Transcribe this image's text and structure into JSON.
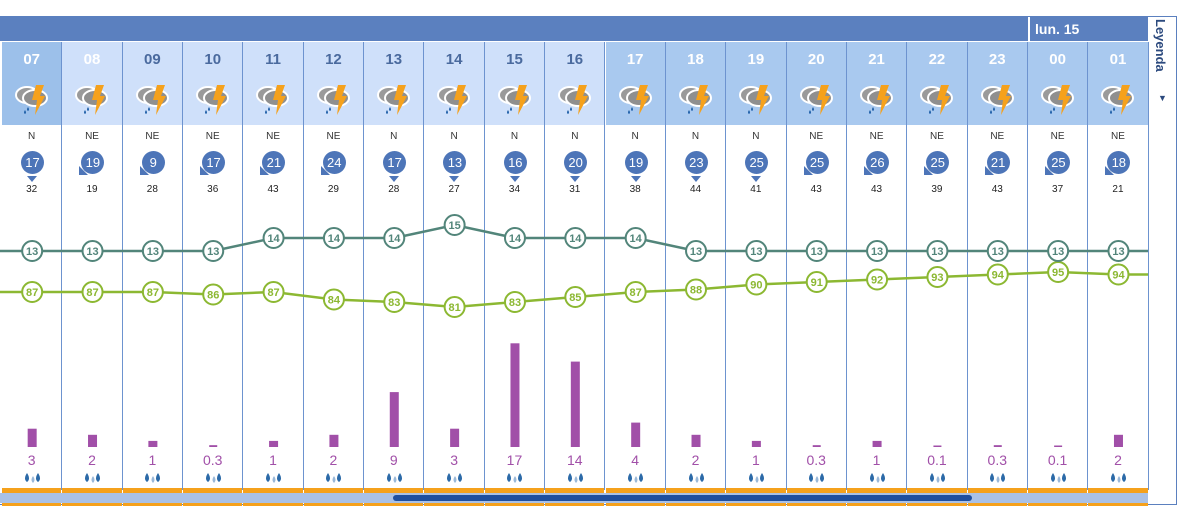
{
  "day_label": "lun. 15",
  "legend_label": "Leyenda",
  "legend_toggle_icon": "caret-down-icon",
  "colors": {
    "temperature": "#52857a",
    "humidity": "#8cb832",
    "precipitation": "#a14fa8",
    "header": "#5b80bf",
    "storm_band": "#f5a11c"
  },
  "hours": [
    {
      "hour": "07",
      "icon": "storm-rain-icon",
      "dir": "N",
      "wind": 17,
      "gust": 32,
      "temp": 13,
      "hum": 87,
      "precip": "3"
    },
    {
      "hour": "08",
      "icon": "storm-rain-icon",
      "dir": "NE",
      "wind": 19,
      "gust": 19,
      "temp": 13,
      "hum": 87,
      "precip": "2"
    },
    {
      "hour": "09",
      "icon": "storm-rain-icon",
      "dir": "NE",
      "wind": 9,
      "gust": 28,
      "temp": 13,
      "hum": 87,
      "precip": "1"
    },
    {
      "hour": "10",
      "icon": "storm-rain-icon",
      "dir": "NE",
      "wind": 17,
      "gust": 36,
      "temp": 13,
      "hum": 86,
      "precip": "0.3"
    },
    {
      "hour": "11",
      "icon": "storm-rain-icon",
      "dir": "NE",
      "wind": 21,
      "gust": 43,
      "temp": 14,
      "hum": 87,
      "precip": "1"
    },
    {
      "hour": "12",
      "icon": "storm-rain-icon",
      "dir": "NE",
      "wind": 24,
      "gust": 29,
      "temp": 14,
      "hum": 84,
      "precip": "2"
    },
    {
      "hour": "13",
      "icon": "storm-rain-icon",
      "dir": "N",
      "wind": 17,
      "gust": 28,
      "temp": 14,
      "hum": 83,
      "precip": "9"
    },
    {
      "hour": "14",
      "icon": "storm-rain-icon",
      "dir": "N",
      "wind": 13,
      "gust": 27,
      "temp": 15,
      "hum": 81,
      "precip": "3"
    },
    {
      "hour": "15",
      "icon": "storm-rain-icon",
      "dir": "N",
      "wind": 16,
      "gust": 34,
      "temp": 14,
      "hum": 83,
      "precip": "17"
    },
    {
      "hour": "16",
      "icon": "storm-rain-icon",
      "dir": "N",
      "wind": 20,
      "gust": 31,
      "temp": 14,
      "hum": 85,
      "precip": "14"
    },
    {
      "hour": "17",
      "icon": "storm-rain-icon",
      "dir": "N",
      "wind": 19,
      "gust": 38,
      "temp": 14,
      "hum": 87,
      "precip": "4"
    },
    {
      "hour": "18",
      "icon": "storm-rain-icon",
      "dir": "N",
      "wind": 23,
      "gust": 44,
      "temp": 13,
      "hum": 88,
      "precip": "2"
    },
    {
      "hour": "19",
      "icon": "storm-rain-icon",
      "dir": "N",
      "wind": 25,
      "gust": 41,
      "temp": 13,
      "hum": 90,
      "precip": "1"
    },
    {
      "hour": "20",
      "icon": "storm-rain-icon",
      "dir": "NE",
      "wind": 25,
      "gust": 43,
      "temp": 13,
      "hum": 91,
      "precip": "0.3"
    },
    {
      "hour": "21",
      "icon": "storm-rain-icon",
      "dir": "NE",
      "wind": 26,
      "gust": 43,
      "temp": 13,
      "hum": 92,
      "precip": "1"
    },
    {
      "hour": "22",
      "icon": "storm-rain-icon",
      "dir": "NE",
      "wind": 25,
      "gust": 39,
      "temp": 13,
      "hum": 93,
      "precip": "0.1"
    },
    {
      "hour": "23",
      "icon": "storm-rain-icon",
      "dir": "NE",
      "wind": 21,
      "gust": 43,
      "temp": 13,
      "hum": 94,
      "precip": "0.3"
    },
    {
      "hour": "00",
      "icon": "storm-rain-icon",
      "dir": "NE",
      "wind": 25,
      "gust": 37,
      "temp": 13,
      "hum": 95,
      "precip": "0.1"
    },
    {
      "hour": "01",
      "icon": "storm-rain-icon",
      "dir": "NE",
      "wind": 18,
      "gust": 21,
      "temp": 13,
      "hum": 94,
      "precip": "2"
    }
  ]
}
